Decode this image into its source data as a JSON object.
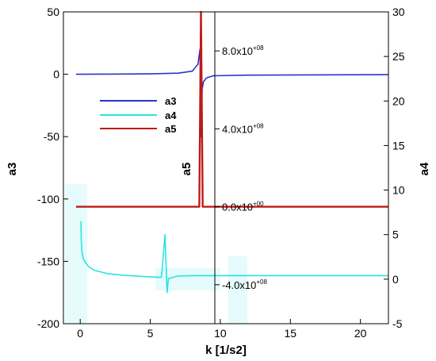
{
  "chart_data": {
    "type": "line",
    "xlabel": "k [1/s2]",
    "xlim": [
      -1.2,
      22
    ],
    "xticks": [
      0,
      5,
      10,
      15,
      20
    ],
    "grid": false,
    "legend": {
      "position": "upper-left",
      "entries": [
        "a3",
        "a4",
        "a5"
      ]
    },
    "axes": [
      {
        "name": "a3",
        "label": "a3",
        "side": "left",
        "ylim": [
          -200,
          50
        ],
        "ticks": [
          50,
          0,
          -50,
          -100,
          -150,
          -200
        ]
      },
      {
        "name": "a4",
        "label": "a4",
        "side": "right",
        "ylim": [
          -5,
          30
        ],
        "ticks": [
          30,
          25,
          20,
          15,
          10,
          5,
          0,
          -5
        ]
      },
      {
        "name": "a5",
        "label": "a5",
        "side": "inner",
        "ylim": [
          -600000000.0,
          1000000000.0
        ],
        "ticks": [
          {
            "value": 800000000.0,
            "mantissa": "8.0x10",
            "exp": "+08"
          },
          {
            "value": 400000000.0,
            "mantissa": "4.0x10",
            "exp": "+08"
          },
          {
            "value": 0,
            "mantissa": "0.0x10",
            "exp": "+00"
          },
          {
            "value": -400000000.0,
            "mantissa": "-4.0x10",
            "exp": "+08"
          }
        ]
      }
    ],
    "series": [
      {
        "name": "a3",
        "axis": "a3",
        "color": "#2b35c8",
        "x": [
          -0.3,
          2,
          5,
          7,
          8,
          8.4,
          8.55,
          8.62,
          8.7,
          8.8,
          9.0,
          9.5,
          12,
          16,
          22
        ],
        "y": [
          0,
          0.1,
          0.3,
          0.9,
          2.5,
          8,
          20,
          -50,
          -12,
          -6,
          -3,
          -1.2,
          -0.7,
          -0.5,
          -0.3
        ]
      },
      {
        "name": "a4",
        "axis": "a4",
        "color": "#28e4e4",
        "x": [
          0.05,
          0.08,
          0.1,
          0.15,
          0.25,
          0.4,
          0.6,
          1.0,
          1.5,
          2.0,
          3.0,
          4.0,
          5.0,
          5.8,
          6.05,
          6.2,
          6.3,
          6.6,
          7.0,
          8.0,
          10.0,
          14.0,
          18.0,
          22.0
        ],
        "y": [
          6.5,
          4.2,
          3.5,
          2.8,
          2.2,
          1.8,
          1.4,
          1.0,
          0.8,
          0.6,
          0.45,
          0.35,
          0.25,
          0.2,
          5.0,
          -1.5,
          0.05,
          0.2,
          0.35,
          0.4,
          0.4,
          0.4,
          0.4,
          0.4
        ]
      },
      {
        "name": "a5",
        "axis": "a5",
        "color": "#c01818",
        "x": [
          -0.3,
          8.5,
          8.62,
          8.74,
          22
        ],
        "y": [
          0,
          0,
          1000000000.0,
          0,
          0
        ]
      }
    ]
  }
}
